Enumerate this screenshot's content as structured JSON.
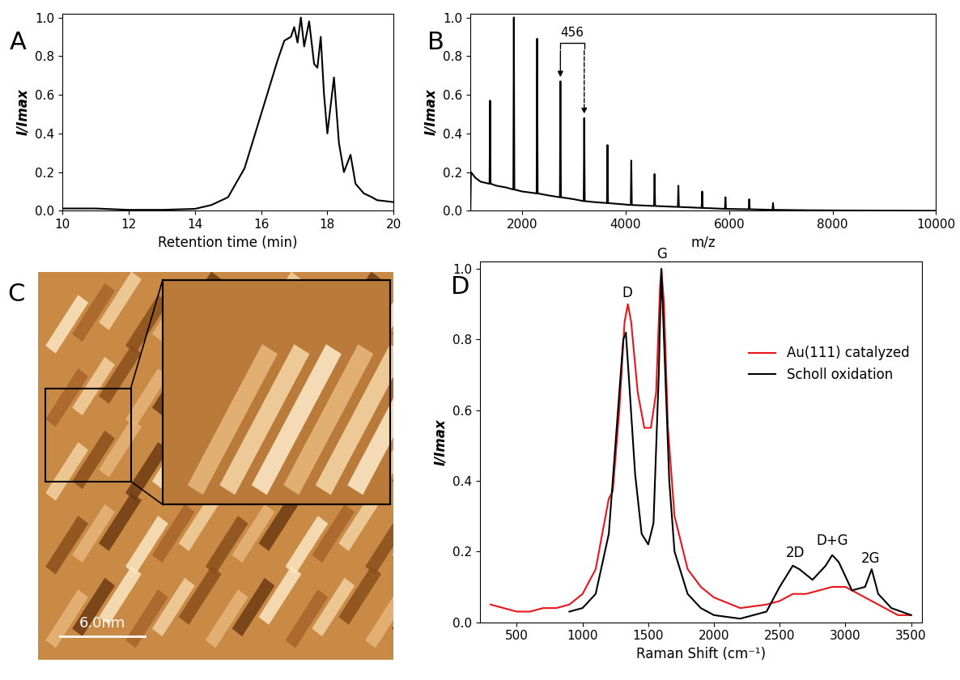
{
  "chart_data": [
    {
      "panel": "A",
      "type": "line",
      "x_label": "Retention time (min)",
      "y_label": "I/Imax",
      "xlim": [
        10,
        20
      ],
      "xticks": [
        10,
        12,
        14,
        16,
        18,
        20
      ],
      "ylim": [
        0,
        1.02
      ],
      "yticks": [
        {
          "value": 0,
          "label": "0.0"
        },
        {
          "value": 0.2,
          "label": "0.2"
        },
        {
          "value": 0.4,
          "label": "0.4"
        },
        {
          "value": 0.6,
          "label": "0.6"
        },
        {
          "value": 0.8,
          "label": "0.8"
        },
        {
          "value": 1.0,
          "label": "1.0"
        }
      ],
      "series": [
        {
          "color": "#000000",
          "x": [
            10,
            11,
            12,
            13,
            14,
            14.5,
            15,
            15.5,
            16,
            16.5,
            16.7,
            16.9,
            17.0,
            17.1,
            17.2,
            17.3,
            17.45,
            17.6,
            17.7,
            17.8,
            17.9,
            18.0,
            18.2,
            18.35,
            18.5,
            18.7,
            18.85,
            19.1,
            19.35,
            19.5,
            20
          ],
          "values": [
            0.012,
            0.012,
            0.005,
            0.005,
            0.01,
            0.03,
            0.07,
            0.22,
            0.5,
            0.78,
            0.88,
            0.9,
            0.95,
            0.87,
            1.0,
            0.85,
            0.98,
            0.76,
            0.74,
            0.9,
            0.6,
            0.4,
            0.69,
            0.35,
            0.2,
            0.29,
            0.14,
            0.09,
            0.07,
            0.055,
            0.045
          ]
        }
      ]
    },
    {
      "panel": "B",
      "type": "line",
      "x_label": "m/z",
      "y_label": "I/Imax",
      "xlim": [
        1000,
        10000
      ],
      "xticks": [
        2000,
        4000,
        6000,
        8000,
        10000
      ],
      "ylim": [
        0,
        1.02
      ],
      "yticks": [
        {
          "value": 0,
          "label": "0.0"
        },
        {
          "value": 0.2,
          "label": "0.2"
        },
        {
          "value": 0.4,
          "label": "0.4"
        },
        {
          "value": 0.6,
          "label": "0.6"
        },
        {
          "value": 0.8,
          "label": "0.8"
        },
        {
          "value": 1.0,
          "label": "1.0"
        }
      ],
      "annotations": [
        {
          "text": "456",
          "x": [
            2740,
            3200
          ]
        }
      ],
      "series": [
        {
          "color": "#000000",
          "x": [
            1000,
            1010,
            1100,
            1200,
            1370,
            1380,
            1390,
            1500,
            1700,
            1830,
            1840,
            1850,
            2000,
            2280,
            2290,
            2300,
            2500,
            2730,
            2740,
            2750,
            3000,
            3190,
            3200,
            3210,
            3400,
            3640,
            3650,
            3660,
            4100,
            4110,
            4120,
            4550,
            4560,
            4570,
            5010,
            5020,
            5030,
            5470,
            5480,
            5490,
            5920,
            5930,
            5940,
            6380,
            6390,
            6400,
            6840,
            6850,
            6860,
            7500,
            8000,
            9000,
            10000
          ],
          "values": [
            0,
            0.2,
            0.17,
            0.15,
            0.14,
            0.57,
            0.14,
            0.13,
            0.12,
            0.11,
            1.0,
            0.11,
            0.1,
            0.09,
            0.89,
            0.09,
            0.08,
            0.07,
            0.67,
            0.07,
            0.06,
            0.05,
            0.48,
            0.05,
            0.045,
            0.04,
            0.34,
            0.04,
            0.03,
            0.26,
            0.03,
            0.025,
            0.19,
            0.025,
            0.02,
            0.13,
            0.02,
            0.015,
            0.1,
            0.015,
            0.01,
            0.07,
            0.01,
            0.008,
            0.06,
            0.008,
            0.005,
            0.04,
            0.005,
            0.003,
            0.002,
            0.001,
            0.0
          ]
        }
      ]
    },
    {
      "panel": "C",
      "type": "image",
      "scale_bar": "6.0nm"
    },
    {
      "panel": "D",
      "type": "line",
      "x_label": "Raman Shift (cm⁻¹)",
      "y_label": "I/Imax",
      "xlim": [
        220,
        3580
      ],
      "xticks": [
        500,
        1000,
        1500,
        2000,
        2500,
        3000,
        3500
      ],
      "ylim": [
        0,
        1.02
      ],
      "yticks": [
        {
          "value": 0,
          "label": "0.0"
        },
        {
          "value": 0.2,
          "label": "0.2"
        },
        {
          "value": 0.4,
          "label": "0.4"
        },
        {
          "value": 0.6,
          "label": "0.6"
        },
        {
          "value": 0.8,
          "label": "0.8"
        },
        {
          "value": 1.0,
          "label": "1.0"
        }
      ],
      "legend": "upper right",
      "annotations": [
        {
          "text": "D",
          "x": 1340
        },
        {
          "text": "G",
          "x": 1600
        },
        {
          "text": "2D",
          "x": 2620
        },
        {
          "text": "D+G",
          "x": 2900
        },
        {
          "text": "2G",
          "x": 3190
        }
      ],
      "series": [
        {
          "name": "Au(111) catalyzed",
          "color": "#e8161b",
          "x": [
            300,
            400,
            500,
            600,
            700,
            800,
            900,
            1000,
            1100,
            1150,
            1200,
            1230,
            1280,
            1320,
            1345,
            1370,
            1420,
            1470,
            1520,
            1560,
            1590,
            1600,
            1620,
            1650,
            1700,
            1800,
            1900,
            2000,
            2200,
            2400,
            2500,
            2600,
            2700,
            2900,
            3000,
            3100,
            3200,
            3300,
            3400,
            3500
          ],
          "values": [
            0.05,
            0.04,
            0.03,
            0.03,
            0.04,
            0.04,
            0.05,
            0.08,
            0.15,
            0.25,
            0.35,
            0.37,
            0.6,
            0.85,
            0.9,
            0.85,
            0.65,
            0.55,
            0.55,
            0.65,
            0.95,
            1.0,
            0.9,
            0.55,
            0.3,
            0.15,
            0.1,
            0.07,
            0.04,
            0.05,
            0.06,
            0.08,
            0.08,
            0.1,
            0.1,
            0.08,
            0.06,
            0.04,
            0.02,
            0.02
          ]
        },
        {
          "name": "Scholl oxidation",
          "color": "#000000",
          "x": [
            900,
            1000,
            1100,
            1200,
            1260,
            1310,
            1330,
            1360,
            1400,
            1450,
            1500,
            1540,
            1580,
            1600,
            1620,
            1660,
            1700,
            1800,
            1900,
            2000,
            2200,
            2400,
            2500,
            2600,
            2650,
            2750,
            2850,
            2900,
            2950,
            3050,
            3150,
            3200,
            3250,
            3350,
            3500
          ],
          "values": [
            0.03,
            0.04,
            0.08,
            0.25,
            0.55,
            0.8,
            0.82,
            0.65,
            0.42,
            0.25,
            0.22,
            0.28,
            0.7,
            1.0,
            0.8,
            0.4,
            0.2,
            0.08,
            0.04,
            0.02,
            0.01,
            0.03,
            0.1,
            0.16,
            0.15,
            0.12,
            0.16,
            0.19,
            0.17,
            0.09,
            0.1,
            0.15,
            0.08,
            0.04,
            0.02
          ]
        }
      ]
    }
  ]
}
